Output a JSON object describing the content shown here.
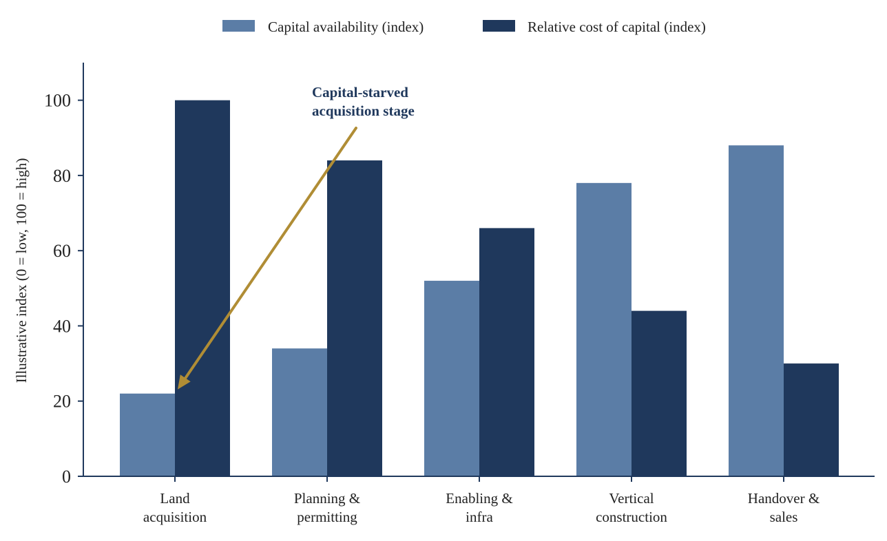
{
  "chart_data": {
    "type": "bar",
    "categories": [
      [
        "Land",
        "acquisition"
      ],
      [
        "Planning &",
        "permitting"
      ],
      [
        "Enabling &",
        "infra"
      ],
      [
        "Vertical",
        "construction"
      ],
      [
        "Handover &",
        "sales"
      ]
    ],
    "series": [
      {
        "name": "Capital availability (index)",
        "color": "#5b7da6",
        "values": [
          22,
          34,
          52,
          78,
          88
        ]
      },
      {
        "name": "Relative cost of capital (index)",
        "color": "#1f385c",
        "values": [
          100,
          84,
          66,
          44,
          30
        ]
      }
    ],
    "ylabel": "Illustrative index (0 = low, 100 = high)",
    "ylim": [
      0,
      110
    ],
    "yticks": [
      0,
      20,
      40,
      60,
      80,
      100
    ],
    "grid": false,
    "legend": "top-center",
    "annotation": {
      "lines": [
        "Capital-starved",
        "acquisition stage"
      ],
      "color": "#1f385c",
      "arrow_color": "#b08d35",
      "points_to": {
        "category": 0,
        "value": 22
      }
    },
    "axis_color": "#1f385c"
  }
}
